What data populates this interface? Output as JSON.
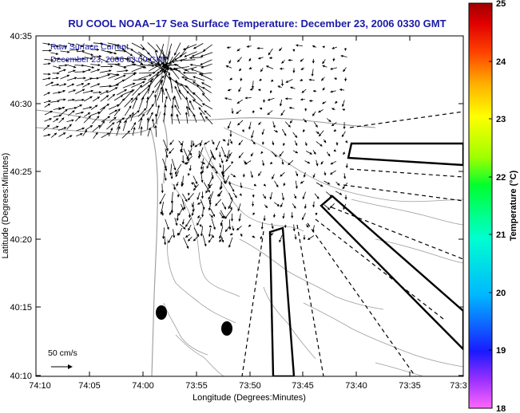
{
  "header": {
    "title": "RU COOL  NOAA−17  Sea Surface Temperature:  December 23, 2006 0330 GMT"
  },
  "inset": {
    "line1": "Raw Surface Current",
    "line2": "December 23, 2006 03:00 GMT"
  },
  "axes": {
    "xlabel": "Longitude (Degrees:Minutes)",
    "ylabel": "Latitude (Degrees:Minutes)",
    "x_ticks": [
      "74:10",
      "74:05",
      "74:00",
      "73:55",
      "73:50",
      "73:45",
      "73:40",
      "73:35",
      "73:3"
    ],
    "y_ticks": [
      "40:35",
      "40:30",
      "40:25",
      "40:20",
      "40:15",
      "40:10"
    ]
  },
  "scale": {
    "label": "50 cm/s"
  },
  "colorbar": {
    "label": "Temperature (°C)",
    "ticks": [
      "25",
      "24",
      "23",
      "22",
      "21",
      "20",
      "19",
      "18"
    ],
    "min": 18,
    "max": 25
  }
}
